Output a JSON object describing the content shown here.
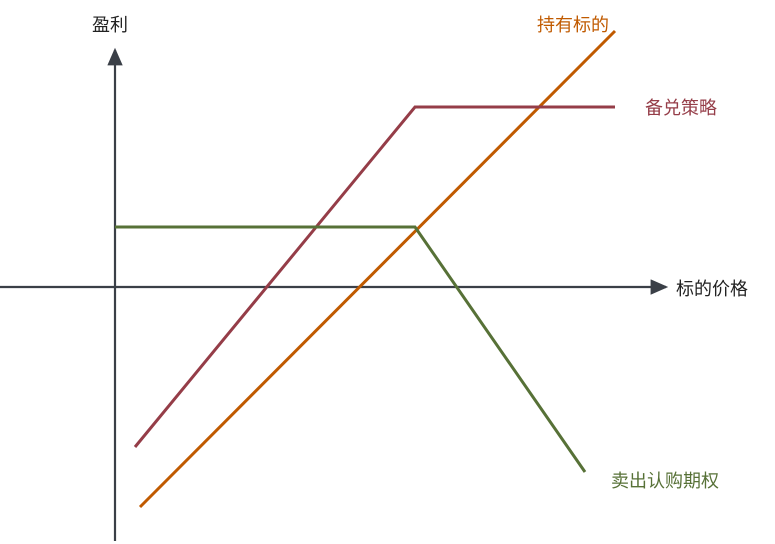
{
  "chart_data": {
    "type": "line",
    "title": "",
    "xlabel": "标的价格",
    "ylabel": "盈利",
    "series": [
      {
        "name": "持有标的",
        "color": "#c05a00",
        "x": [
          0.25,
          5.0
        ],
        "y": [
          -2.2,
          2.56
        ]
      },
      {
        "name": "备兑策略",
        "color": "#953d48",
        "x": [
          0.2,
          3.0,
          5.0
        ],
        "y": [
          -1.6,
          1.8,
          1.8
        ]
      },
      {
        "name": "卖出认购期权",
        "color": "#577137",
        "x": [
          0.0,
          3.0,
          4.7
        ],
        "y": [
          0.6,
          0.6,
          -1.85
        ]
      }
    ],
    "xlim": [
      0,
      5.7
    ],
    "ylim": [
      -2.6,
      2.6
    ],
    "grid": false,
    "legend": "line-end labels"
  }
}
